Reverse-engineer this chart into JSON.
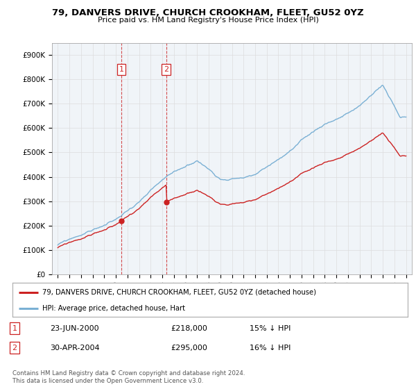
{
  "title": "79, DANVERS DRIVE, CHURCH CROOKHAM, FLEET, GU52 0YZ",
  "subtitle": "Price paid vs. HM Land Registry's House Price Index (HPI)",
  "ylabel_ticks": [
    "£0",
    "£100K",
    "£200K",
    "£300K",
    "£400K",
    "£500K",
    "£600K",
    "£700K",
    "£800K",
    "£900K"
  ],
  "ytick_values": [
    0,
    100000,
    200000,
    300000,
    400000,
    500000,
    600000,
    700000,
    800000,
    900000
  ],
  "ylim": [
    0,
    950000
  ],
  "xlim_min": 1994.5,
  "xlim_max": 2025.5,
  "legend_line1": "79, DANVERS DRIVE, CHURCH CROOKHAM, FLEET, GU52 0YZ (detached house)",
  "legend_line2": "HPI: Average price, detached house, Hart",
  "sale1_date": "23-JUN-2000",
  "sale1_price": "£218,000",
  "sale1_hpi": "15% ↓ HPI",
  "sale1_label": "1",
  "sale1_year": 2000.47,
  "sale1_value": 218000,
  "sale2_date": "30-APR-2004",
  "sale2_price": "£295,000",
  "sale2_hpi": "16% ↓ HPI",
  "sale2_label": "2",
  "sale2_year": 2004.33,
  "sale2_value": 295000,
  "footer": "Contains HM Land Registry data © Crown copyright and database right 2024.\nThis data is licensed under the Open Government Licence v3.0.",
  "hpi_color": "#7ab0d4",
  "price_color": "#cc2222",
  "vline_color": "#cc2222",
  "background_color": "#ffffff",
  "grid_color": "#dddddd",
  "chart_bg": "#f0f4f8"
}
